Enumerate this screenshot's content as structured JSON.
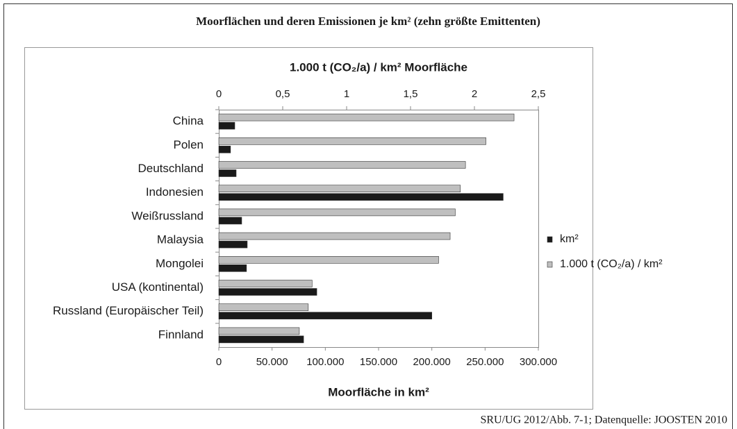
{
  "chart_data": {
    "type": "bar",
    "orientation": "horizontal",
    "title": "Moorflächen und deren Emissionen je km² (zehn größte Emittenten)",
    "footer": "SRU/UG 2012/Abb. 7-1; Datenquelle: JOOSTEN 2010",
    "x_label": "Moorfläche in km²",
    "x2_label": "1.000 t (CO₂/a) / km² Moorfläche",
    "categories": [
      "China",
      "Polen",
      "Deutschland",
      "Indonesien",
      "Weißrussland",
      "Malaysia",
      "Mongolei",
      "USA (kontinental)",
      "Russland (Europäischer Teil)",
      "Finnland"
    ],
    "series": [
      {
        "name": "km²",
        "color": "#1a1a1a",
        "axis": "x",
        "values": [
          15000,
          11000,
          16300,
          267000,
          21500,
          26700,
          26000,
          92000,
          200000,
          79600
        ]
      },
      {
        "name": "1.000 t (CO₂/a) / km²",
        "color": "#bfbfbf",
        "axis": "x2",
        "values": [
          2.31,
          2.09,
          1.93,
          1.89,
          1.85,
          1.81,
          1.72,
          0.73,
          0.7,
          0.63
        ]
      }
    ],
    "xlim": [
      0,
      300000
    ],
    "xticks": [
      0,
      {
        "value": 50000,
        "label": "50.000"
      },
      {
        "value": 100000,
        "label": "100.000"
      },
      {
        "value": 150000,
        "label": "150.000"
      },
      {
        "value": 200000,
        "label": "200.000"
      },
      {
        "value": 250000,
        "label": "250.000"
      },
      {
        "value": 300000,
        "label": "300.000"
      }
    ],
    "x2lim": [
      0,
      2.5
    ],
    "x2ticks": [
      0,
      {
        "value": 0.5,
        "label": "0,5"
      },
      1,
      {
        "value": 1.5,
        "label": "1,5"
      },
      2,
      {
        "value": 2.5,
        "label": "2,5"
      }
    ],
    "legend": "right",
    "grid": false
  }
}
